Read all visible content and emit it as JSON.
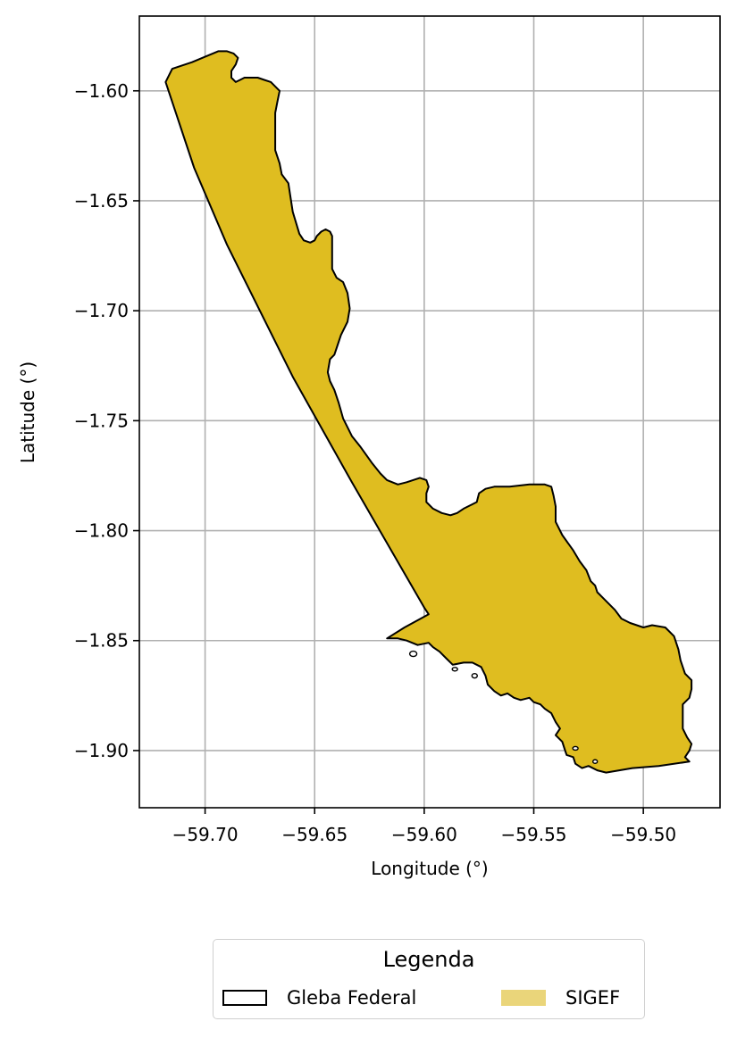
{
  "chart_data": {
    "type": "map",
    "xlabel": "Longitude (°)",
    "ylabel": "Latitude (°)",
    "xlim": [
      -59.73,
      -59.465
    ],
    "ylim": [
      -1.926,
      -1.566
    ],
    "xticks": [
      -59.7,
      -59.65,
      -59.6,
      -59.55,
      -59.5
    ],
    "xtick_labels": [
      "−59.70",
      "−59.65",
      "−59.60",
      "−59.55",
      "−59.50"
    ],
    "yticks": [
      -1.6,
      -1.65,
      -1.7,
      -1.75,
      -1.8,
      -1.85,
      -1.9
    ],
    "ytick_labels": [
      "−1.60",
      "−1.65",
      "−1.70",
      "−1.75",
      "−1.80",
      "−1.85",
      "−1.90"
    ],
    "grid": true,
    "fill_color": "#dfbd20",
    "legend_fill_color": "#ead57a",
    "edge_color": "#000000",
    "polygon": [
      [
        -59.718,
        -1.596
      ],
      [
        -59.715,
        -1.59
      ],
      [
        -59.706,
        -1.587
      ],
      [
        -59.694,
        -1.582
      ],
      [
        -59.69,
        -1.582
      ],
      [
        -59.687,
        -1.583
      ],
      [
        -59.685,
        -1.585
      ],
      [
        -59.686,
        -1.588
      ],
      [
        -59.688,
        -1.591
      ],
      [
        -59.688,
        -1.594
      ],
      [
        -59.686,
        -1.596
      ],
      [
        -59.684,
        -1.595
      ],
      [
        -59.682,
        -1.594
      ],
      [
        -59.678,
        -1.594
      ],
      [
        -59.676,
        -1.594
      ],
      [
        -59.673,
        -1.595
      ],
      [
        -59.67,
        -1.596
      ],
      [
        -59.666,
        -1.6
      ],
      [
        -59.667,
        -1.605
      ],
      [
        -59.668,
        -1.61
      ],
      [
        -59.668,
        -1.62
      ],
      [
        -59.668,
        -1.627
      ],
      [
        -59.666,
        -1.633
      ],
      [
        -59.665,
        -1.638
      ],
      [
        -59.662,
        -1.642
      ],
      [
        -59.66,
        -1.655
      ],
      [
        -59.657,
        -1.665
      ],
      [
        -59.655,
        -1.668
      ],
      [
        -59.652,
        -1.669
      ],
      [
        -59.65,
        -1.668
      ],
      [
        -59.649,
        -1.666
      ],
      [
        -59.647,
        -1.664
      ],
      [
        -59.645,
        -1.663
      ],
      [
        -59.643,
        -1.664
      ],
      [
        -59.642,
        -1.666
      ],
      [
        -59.642,
        -1.67
      ],
      [
        -59.642,
        -1.676
      ],
      [
        -59.642,
        -1.681
      ],
      [
        -59.64,
        -1.685
      ],
      [
        -59.637,
        -1.687
      ],
      [
        -59.635,
        -1.692
      ],
      [
        -59.634,
        -1.699
      ],
      [
        -59.635,
        -1.705
      ],
      [
        -59.638,
        -1.711
      ],
      [
        -59.64,
        -1.717
      ],
      [
        -59.641,
        -1.72
      ],
      [
        -59.643,
        -1.722
      ],
      [
        -59.644,
        -1.728
      ],
      [
        -59.643,
        -1.732
      ],
      [
        -59.641,
        -1.736
      ],
      [
        -59.639,
        -1.742
      ],
      [
        -59.637,
        -1.749
      ],
      [
        -59.635,
        -1.753
      ],
      [
        -59.633,
        -1.757
      ],
      [
        -59.629,
        -1.762
      ],
      [
        -59.624,
        -1.769
      ],
      [
        -59.62,
        -1.774
      ],
      [
        -59.617,
        -1.777
      ],
      [
        -59.612,
        -1.779
      ],
      [
        -59.608,
        -1.778
      ],
      [
        -59.602,
        -1.776
      ],
      [
        -59.599,
        -1.777
      ],
      [
        -59.598,
        -1.78
      ],
      [
        -59.599,
        -1.783
      ],
      [
        -59.599,
        -1.787
      ],
      [
        -59.596,
        -1.79
      ],
      [
        -59.592,
        -1.792
      ],
      [
        -59.588,
        -1.793
      ],
      [
        -59.585,
        -1.792
      ],
      [
        -59.582,
        -1.79
      ],
      [
        -59.578,
        -1.788
      ],
      [
        -59.576,
        -1.787
      ],
      [
        -59.575,
        -1.783
      ],
      [
        -59.572,
        -1.781
      ],
      [
        -59.568,
        -1.78
      ],
      [
        -59.561,
        -1.78
      ],
      [
        -59.552,
        -1.779
      ],
      [
        -59.545,
        -1.779
      ],
      [
        -59.542,
        -1.78
      ],
      [
        -59.541,
        -1.784
      ],
      [
        -59.54,
        -1.789
      ],
      [
        -59.54,
        -1.796
      ],
      [
        -59.537,
        -1.802
      ],
      [
        -59.532,
        -1.809
      ],
      [
        -59.529,
        -1.814
      ],
      [
        -59.526,
        -1.818
      ],
      [
        -59.524,
        -1.823
      ],
      [
        -59.522,
        -1.825
      ],
      [
        -59.521,
        -1.828
      ],
      [
        -59.518,
        -1.831
      ],
      [
        -59.513,
        -1.836
      ],
      [
        -59.51,
        -1.84
      ],
      [
        -59.506,
        -1.842
      ],
      [
        -59.5,
        -1.844
      ],
      [
        -59.496,
        -1.843
      ],
      [
        -59.49,
        -1.844
      ],
      [
        -59.486,
        -1.848
      ],
      [
        -59.484,
        -1.854
      ],
      [
        -59.483,
        -1.859
      ],
      [
        -59.481,
        -1.865
      ],
      [
        -59.478,
        -1.868
      ],
      [
        -59.478,
        -1.872
      ],
      [
        -59.479,
        -1.876
      ],
      [
        -59.482,
        -1.879
      ],
      [
        -59.482,
        -1.884
      ],
      [
        -59.482,
        -1.89
      ],
      [
        -59.48,
        -1.894
      ],
      [
        -59.478,
        -1.897
      ],
      [
        -59.479,
        -1.9
      ],
      [
        -59.481,
        -1.903
      ],
      [
        -59.479,
        -1.905
      ],
      [
        -59.493,
        -1.907
      ],
      [
        -59.505,
        -1.908
      ],
      [
        -59.517,
        -1.91
      ],
      [
        -59.521,
        -1.909
      ],
      [
        -59.525,
        -1.907
      ],
      [
        -59.528,
        -1.908
      ],
      [
        -59.531,
        -1.906
      ],
      [
        -59.532,
        -1.903
      ],
      [
        -59.535,
        -1.902
      ],
      [
        -59.536,
        -1.899
      ],
      [
        -59.537,
        -1.896
      ],
      [
        -59.54,
        -1.893
      ],
      [
        -59.538,
        -1.89
      ],
      [
        -59.54,
        -1.887
      ],
      [
        -59.542,
        -1.883
      ],
      [
        -59.545,
        -1.881
      ],
      [
        -59.547,
        -1.879
      ],
      [
        -59.55,
        -1.878
      ],
      [
        -59.552,
        -1.876
      ],
      [
        -59.556,
        -1.877
      ],
      [
        -59.559,
        -1.876
      ],
      [
        -59.562,
        -1.874
      ],
      [
        -59.565,
        -1.875
      ],
      [
        -59.568,
        -1.873
      ],
      [
        -59.571,
        -1.87
      ],
      [
        -59.572,
        -1.866
      ],
      [
        -59.574,
        -1.862
      ],
      [
        -59.578,
        -1.86
      ],
      [
        -59.582,
        -1.86
      ],
      [
        -59.587,
        -1.861
      ],
      [
        -59.59,
        -1.858
      ],
      [
        -59.593,
        -1.855
      ],
      [
        -59.596,
        -1.853
      ],
      [
        -59.598,
        -1.851
      ],
      [
        -59.603,
        -1.852
      ],
      [
        -59.608,
        -1.85
      ],
      [
        -59.612,
        -1.849
      ],
      [
        -59.617,
        -1.849
      ],
      [
        -59.609,
        -1.844
      ],
      [
        -59.598,
        -1.838
      ],
      [
        -59.6,
        -1.835
      ],
      [
        -59.633,
        -1.778
      ],
      [
        -59.66,
        -1.73
      ],
      [
        -59.69,
        -1.67
      ],
      [
        -59.705,
        -1.635
      ]
    ]
  },
  "legend": {
    "title": "Legenda",
    "items": [
      {
        "label": "Gleba Federal"
      },
      {
        "label": "SIGEF"
      }
    ]
  }
}
